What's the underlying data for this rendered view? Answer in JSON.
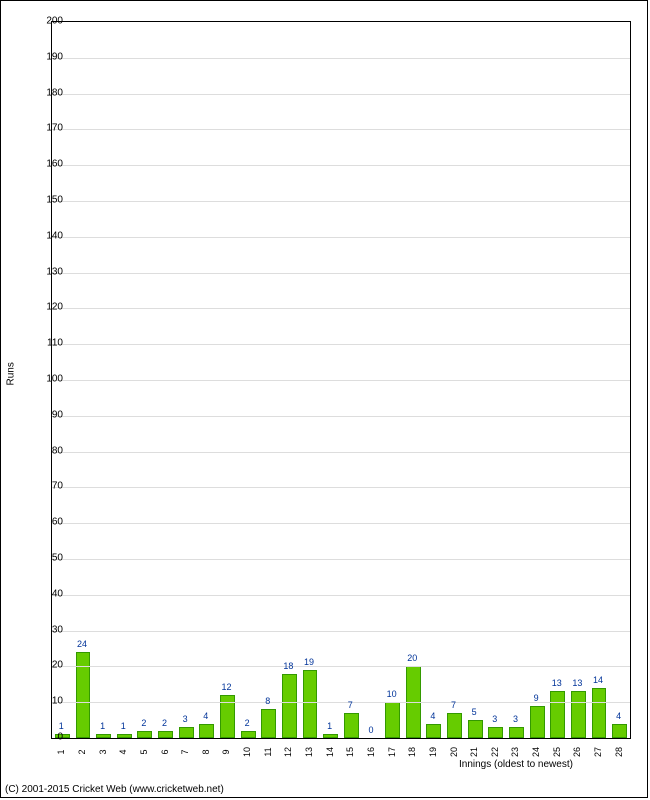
{
  "chart": {
    "type": "bar",
    "ylabel": "Runs",
    "xlabel": "Innings (oldest to newest)",
    "ylim": [
      0,
      200
    ],
    "ytick_step": 10,
    "xlim_count": 28,
    "background_color": "#ffffff",
    "grid_color": "#dddddd",
    "border_color": "#000000",
    "bar_fill": "#66cc00",
    "bar_stroke": "#339900",
    "value_label_color": "#003399",
    "axis_label_fontsize": 10,
    "tick_fontsize": 10,
    "value_fontsize": 9,
    "bar_width_ratio": 0.72,
    "categories": [
      "1",
      "2",
      "3",
      "4",
      "5",
      "6",
      "7",
      "8",
      "9",
      "10",
      "11",
      "12",
      "13",
      "14",
      "15",
      "16",
      "17",
      "18",
      "19",
      "20",
      "21",
      "22",
      "23",
      "24",
      "25",
      "26",
      "27",
      "28"
    ],
    "values": [
      1,
      24,
      1,
      1,
      2,
      2,
      3,
      4,
      12,
      2,
      8,
      18,
      19,
      1,
      7,
      0,
      10,
      20,
      4,
      7,
      5,
      3,
      3,
      9,
      13,
      13,
      14,
      4
    ]
  },
  "copyright": "(C) 2001-2015 Cricket Web (www.cricketweb.net)"
}
